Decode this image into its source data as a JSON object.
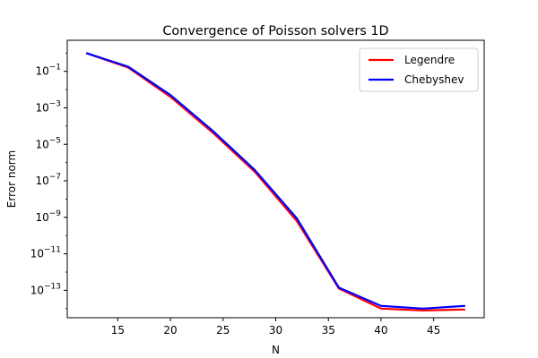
{
  "chart_data": {
    "type": "line",
    "title": "Convergence of Poisson solvers 1D",
    "xlabel": "N",
    "ylabel": "Error norm",
    "yscale": "log",
    "xlim": [
      10.2,
      49.8
    ],
    "ylim_log10": [
      -14.5,
      0.7
    ],
    "grid": false,
    "legend_position": "top-right",
    "x": [
      12,
      16,
      20,
      24,
      28,
      32,
      36,
      40,
      44,
      48
    ],
    "series": [
      {
        "name": "Legendre",
        "color": "#ff0000",
        "log10_values": [
          0.0,
          -0.8,
          -2.4,
          -4.35,
          -6.5,
          -9.2,
          -12.9,
          -14.0,
          -14.1,
          -14.05
        ]
      },
      {
        "name": "Chebyshev",
        "color": "#0000ff",
        "log10_values": [
          0.0,
          -0.75,
          -2.3,
          -4.25,
          -6.4,
          -9.05,
          -12.85,
          -13.85,
          -14.0,
          -13.85
        ]
      }
    ],
    "xticks": [
      15,
      20,
      25,
      30,
      35,
      40,
      45
    ],
    "xtick_labels": [
      "15",
      "20",
      "25",
      "30",
      "35",
      "40",
      "45"
    ],
    "yticks_log10": [
      -1,
      -3,
      -5,
      -7,
      -9,
      -11,
      -13
    ],
    "ytick_labels": [
      {
        "base": "10",
        "exp": "−1"
      },
      {
        "base": "10",
        "exp": "−3"
      },
      {
        "base": "10",
        "exp": "−5"
      },
      {
        "base": "10",
        "exp": "−7"
      },
      {
        "base": "10",
        "exp": "−9"
      },
      {
        "base": "10",
        "exp": "−11"
      },
      {
        "base": "10",
        "exp": "−13"
      }
    ]
  }
}
